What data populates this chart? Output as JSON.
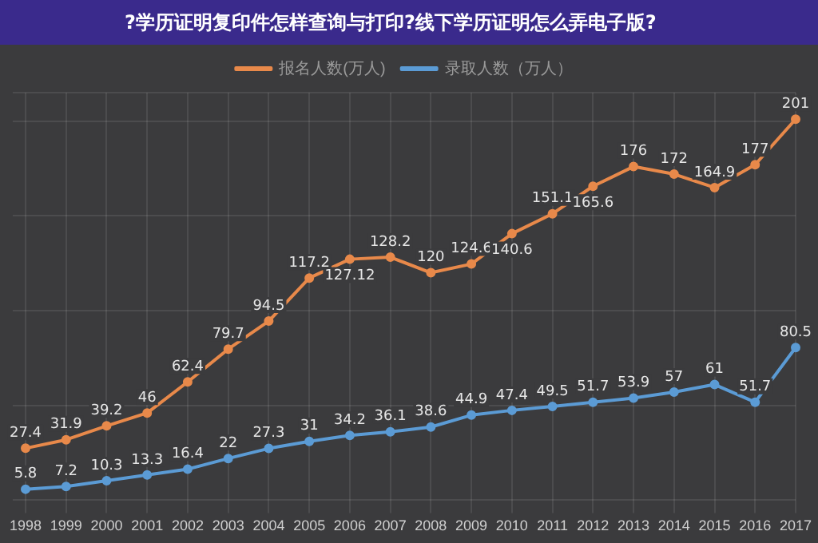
{
  "chart_data": {
    "type": "line",
    "title": "?学历证明复印件怎样查询与打印?线下学历证明怎么弄电子版?",
    "categories": [
      "1998",
      "1999",
      "2000",
      "2001",
      "2002",
      "2003",
      "2004",
      "2005",
      "2006",
      "2007",
      "2008",
      "2009",
      "2010",
      "2011",
      "2012",
      "2013",
      "2014",
      "2015",
      "2016",
      "2017"
    ],
    "series": [
      {
        "name": "报名人数(万人)",
        "color": "#e8894a",
        "values": [
          27.4,
          31.9,
          39.2,
          46,
          62.4,
          79.7,
          94.5,
          117.2,
          127.12,
          128.2,
          120,
          124.6,
          140.6,
          151.1,
          165.6,
          176,
          172,
          164.9,
          177,
          201
        ]
      },
      {
        "name": "录取人数（万人）",
        "color": "#5b9bd5",
        "values": [
          5.8,
          7.2,
          10.3,
          13.3,
          16.4,
          22,
          27.3,
          31,
          34.2,
          36.1,
          38.6,
          44.9,
          47.4,
          49.5,
          51.7,
          53.9,
          57,
          61,
          51.7,
          80.5
        ]
      }
    ],
    "ylim": [
      0,
      215
    ],
    "tick_labels": "x",
    "grid": true,
    "legend": "top",
    "marker": "circle",
    "data_labels": true
  }
}
